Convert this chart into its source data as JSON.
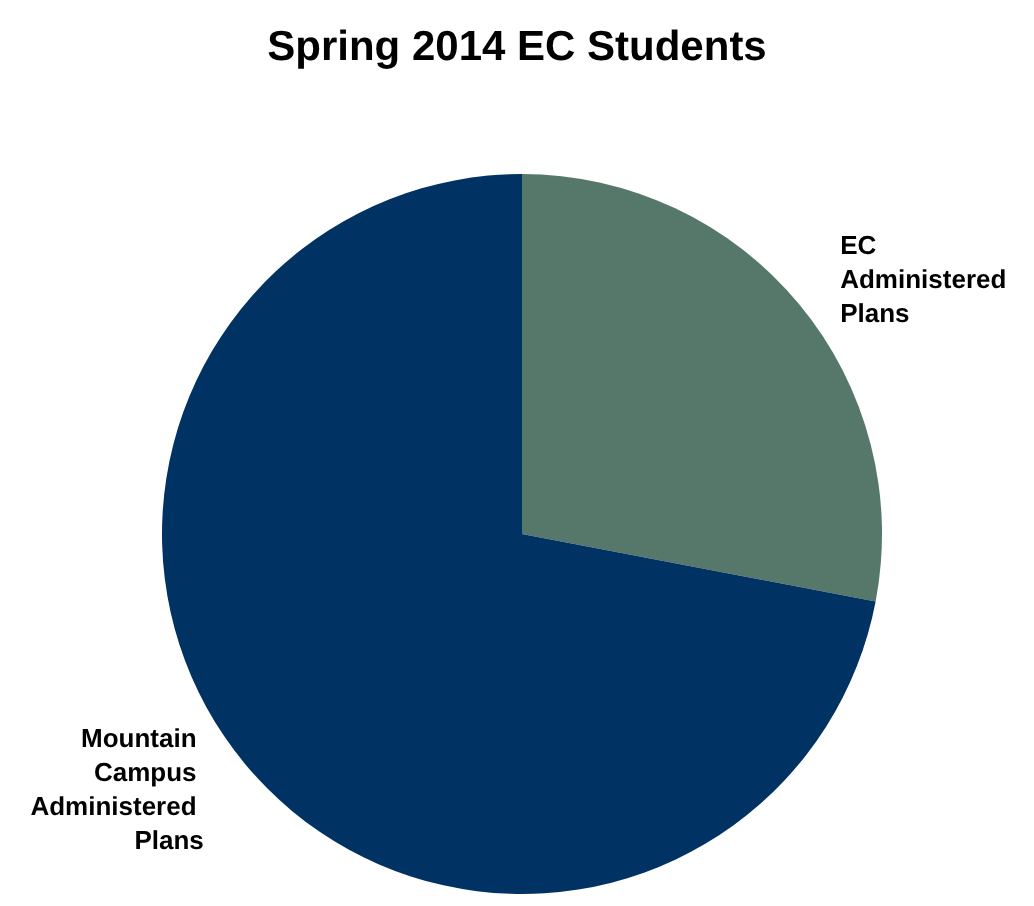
{
  "chart_data": {
    "type": "pie",
    "title": "Spring 2014 EC Students",
    "categories": [
      "EC Administered Plans",
      "Mountain Campus Administered Plans"
    ],
    "values": [
      28,
      72
    ],
    "colors": [
      "#56786a",
      "#003263"
    ],
    "legend": false
  }
}
